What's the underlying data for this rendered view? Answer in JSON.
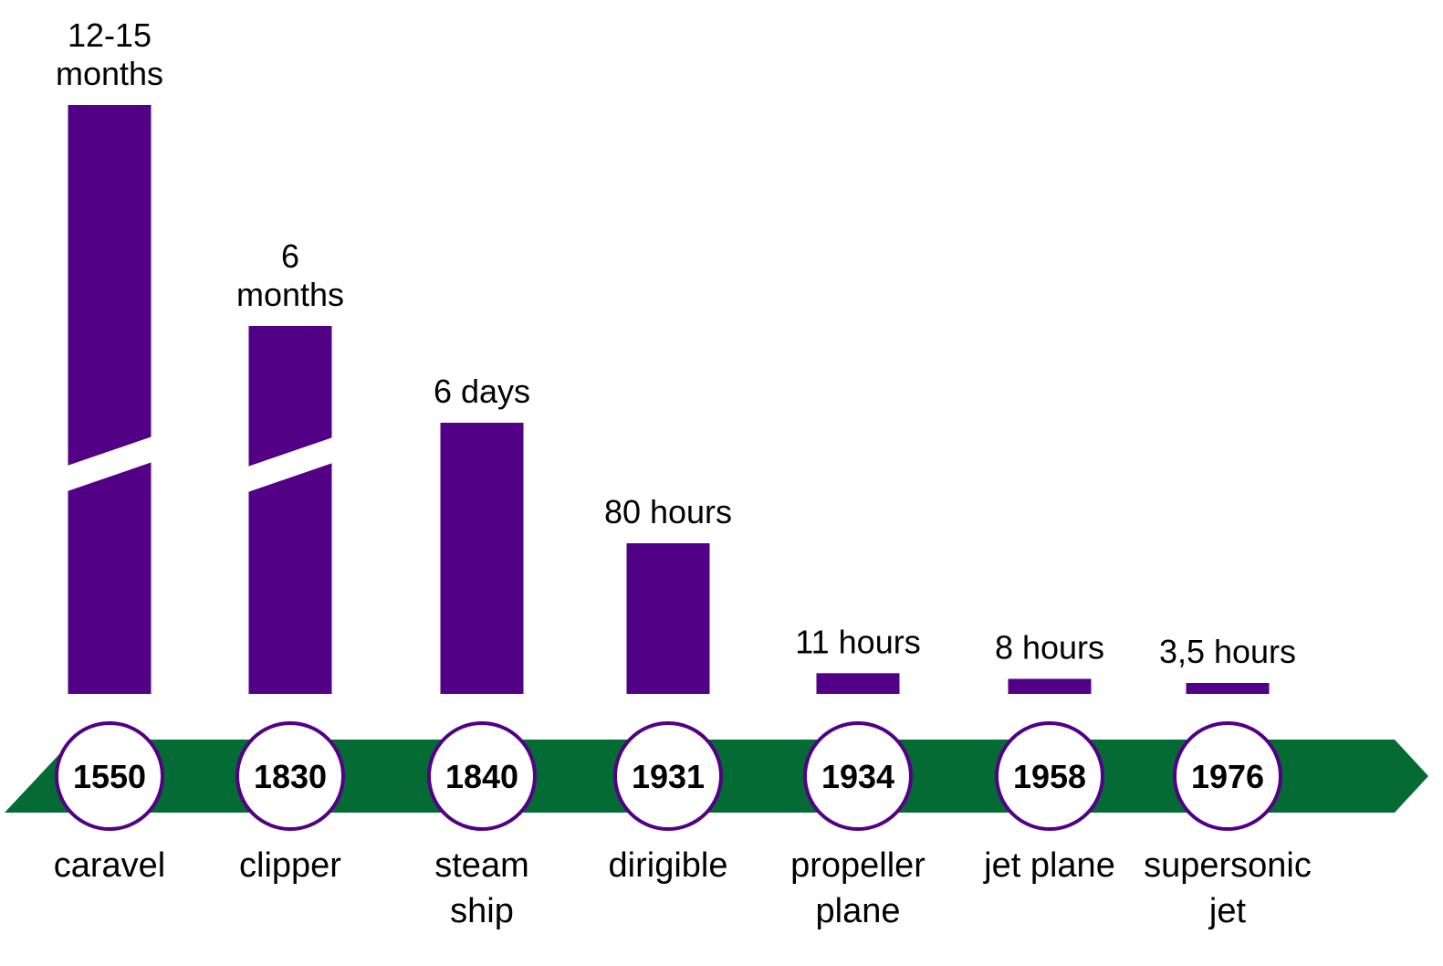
{
  "colors": {
    "bar": "#520085",
    "arrow": "#056b35",
    "circle_fill": "#ffffff",
    "circle_stroke": "#520085"
  },
  "chart_data": {
    "type": "bar",
    "title": "",
    "xlabel": "",
    "ylabel": "",
    "grid": false,
    "axis_broken_bars": [
      "1550",
      "1830"
    ],
    "entries": [
      {
        "year": "1550",
        "mode": [
          "caravel"
        ],
        "value_label": [
          "12-15",
          "months"
        ],
        "hours": 9720
      },
      {
        "year": "1830",
        "mode": [
          "clipper"
        ],
        "value_label": [
          "6",
          "months"
        ],
        "hours": 4320
      },
      {
        "year": "1840",
        "mode": [
          "steam",
          "ship"
        ],
        "value_label": [
          "6 days"
        ],
        "hours": 144
      },
      {
        "year": "1931",
        "mode": [
          "dirigible"
        ],
        "value_label": [
          "80 hours"
        ],
        "hours": 80
      },
      {
        "year": "1934",
        "mode": [
          "propeller",
          "plane"
        ],
        "value_label": [
          "11 hours"
        ],
        "hours": 11
      },
      {
        "year": "1958",
        "mode": [
          "jet plane"
        ],
        "value_label": [
          "8 hours"
        ],
        "hours": 8
      },
      {
        "year": "1976",
        "mode": [
          "supersonic",
          "jet"
        ],
        "value_label": [
          "3,5 hours"
        ],
        "hours": 3.5
      }
    ]
  }
}
